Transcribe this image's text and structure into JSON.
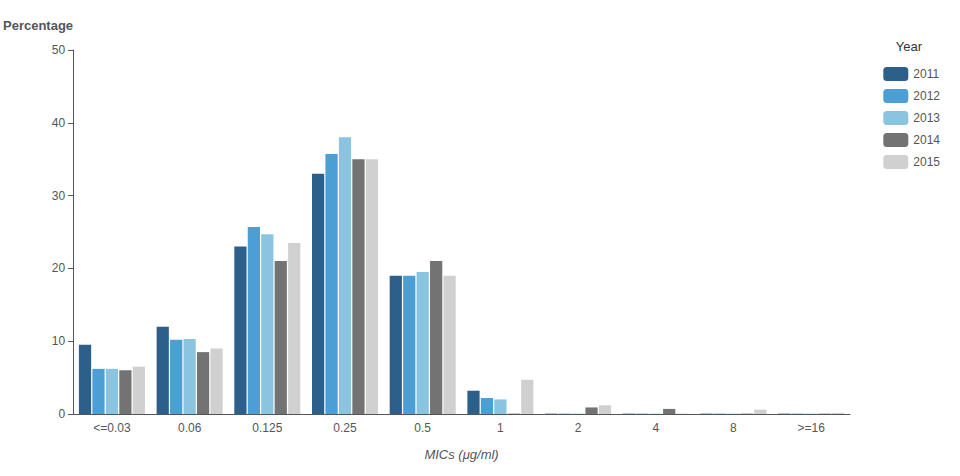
{
  "chart_data": {
    "type": "bar",
    "categories": [
      "<=0.03",
      "0.06",
      "0.125",
      "0.25",
      "0.5",
      "1",
      "2",
      "4",
      "8",
      ">=16"
    ],
    "series": [
      {
        "name": "2011",
        "color": "#2c5f8a",
        "values": [
          9.5,
          12.0,
          23.0,
          33.0,
          19.0,
          3.2,
          0.05,
          0.05,
          0.05,
          0.05
        ]
      },
      {
        "name": "2012",
        "color": "#4b9fd4",
        "values": [
          6.2,
          10.2,
          25.7,
          35.7,
          19.0,
          2.2,
          0.05,
          0.05,
          0.05,
          0.05
        ]
      },
      {
        "name": "2013",
        "color": "#89c4e1",
        "values": [
          6.2,
          10.3,
          24.7,
          38.0,
          19.5,
          2.0,
          0.05,
          0.05,
          0.05,
          0.05
        ]
      },
      {
        "name": "2014",
        "color": "#737373",
        "values": [
          6.0,
          8.5,
          21.0,
          35.0,
          21.0,
          0.05,
          0.9,
          0.7,
          0.05,
          0.05
        ]
      },
      {
        "name": "2015",
        "color": "#d0d0d0",
        "values": [
          6.5,
          9.0,
          23.5,
          35.0,
          19.0,
          4.7,
          1.2,
          0.05,
          0.6,
          0.15
        ]
      }
    ],
    "xlabel": "MICs (μg/ml)",
    "ylabel": "Percentage",
    "legend_title": "Year",
    "legend": "upper right",
    "ylim": [
      0,
      50
    ],
    "yticks": [
      0,
      10,
      20,
      30,
      40,
      50
    ],
    "grid": false
  }
}
